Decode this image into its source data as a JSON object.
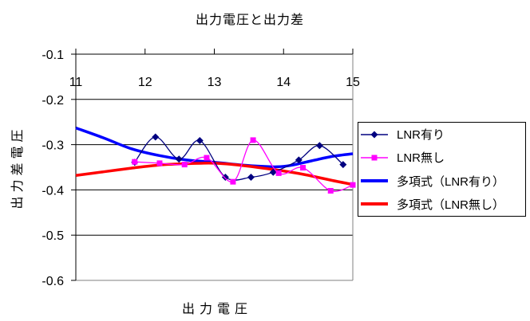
{
  "chart_data": {
    "type": "line",
    "title": "出力電圧と出力差",
    "xlabel": "出力電圧",
    "ylabel": "出力差電圧",
    "xlim": [
      11,
      15
    ],
    "ylim": [
      -0.6,
      -0.1
    ],
    "x_ticks": [
      11,
      12,
      13,
      14,
      15
    ],
    "x_tick_labels": [
      "11",
      "12",
      "13",
      "14",
      "15"
    ],
    "y_ticks": [
      -0.1,
      -0.2,
      -0.3,
      -0.4,
      -0.5,
      -0.6
    ],
    "y_tick_labels": [
      "-0.1",
      "-0.2",
      "-0.3",
      "-0.4",
      "-0.5",
      "-0.6"
    ],
    "grid": "horizontal-black",
    "legend_position": "right",
    "axis_color": "#000000",
    "plot_border_color": "#808080",
    "background": "#ffffff",
    "series": [
      {
        "name": "LNR有り",
        "type": "line-smooth",
        "marker": "diamond",
        "color": "#000080",
        "points": [
          [
            11.85,
            -0.339
          ],
          [
            12.15,
            -0.283
          ],
          [
            12.49,
            -0.332
          ],
          [
            12.79,
            -0.291
          ],
          [
            13.16,
            -0.372
          ],
          [
            13.53,
            -0.372
          ],
          [
            13.85,
            -0.361
          ],
          [
            14.22,
            -0.334
          ],
          [
            14.52,
            -0.302
          ],
          [
            14.86,
            -0.344
          ]
        ]
      },
      {
        "name": "LNR無し",
        "type": "line-smooth",
        "marker": "square",
        "color": "#FF00FF",
        "points": [
          [
            11.85,
            -0.338
          ],
          [
            12.21,
            -0.341
          ],
          [
            12.57,
            -0.344
          ],
          [
            12.89,
            -0.329
          ],
          [
            13.27,
            -0.382
          ],
          [
            13.56,
            -0.29
          ],
          [
            13.93,
            -0.363
          ],
          [
            14.28,
            -0.351
          ],
          [
            14.68,
            -0.402
          ],
          [
            15.0,
            -0.389
          ]
        ]
      },
      {
        "name": "多項式（LNR有り）",
        "type": "trendline",
        "marker": "none",
        "color": "#0000FF",
        "points": [
          [
            11,
            -0.263
          ],
          [
            11.4,
            -0.285
          ],
          [
            11.8,
            -0.309
          ],
          [
            12.2,
            -0.324
          ],
          [
            12.6,
            -0.334
          ],
          [
            13.0,
            -0.339
          ],
          [
            13.4,
            -0.345
          ],
          [
            13.7,
            -0.348
          ],
          [
            13.9,
            -0.349
          ],
          [
            14.1,
            -0.346
          ],
          [
            14.4,
            -0.336
          ],
          [
            14.7,
            -0.326
          ],
          [
            15.0,
            -0.32
          ]
        ]
      },
      {
        "name": "多項式（LNR無し）",
        "type": "trendline",
        "marker": "none",
        "color": "#FF0000",
        "points": [
          [
            11,
            -0.368
          ],
          [
            11.4,
            -0.36
          ],
          [
            11.8,
            -0.352
          ],
          [
            12.2,
            -0.345
          ],
          [
            12.6,
            -0.342
          ],
          [
            13.0,
            -0.341
          ],
          [
            13.4,
            -0.346
          ],
          [
            13.9,
            -0.356
          ],
          [
            14.3,
            -0.366
          ],
          [
            14.7,
            -0.379
          ],
          [
            15.0,
            -0.388
          ]
        ]
      }
    ]
  }
}
